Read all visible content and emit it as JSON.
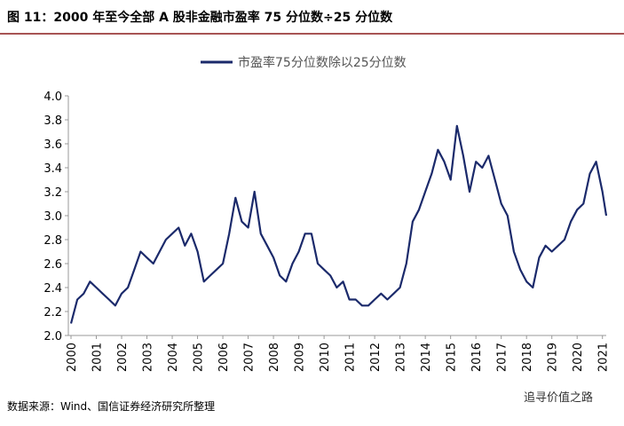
{
  "chart_data": {
    "type": "line",
    "title": "图 11：2000 年至今全部 A 股非金融市盈率 75 分位数÷25 分位数",
    "source": "数据来源：Wind、国信证券经济研究所整理",
    "watermark": "追寻价值之路",
    "legend": "top",
    "x": [
      2000.0,
      2000.25,
      2000.5,
      2000.75,
      2001.0,
      2001.25,
      2001.5,
      2001.75,
      2002.0,
      2002.25,
      2002.5,
      2002.75,
      2003.0,
      2003.25,
      2003.5,
      2003.75,
      2004.0,
      2004.25,
      2004.5,
      2004.75,
      2005.0,
      2005.25,
      2005.5,
      2005.75,
      2006.0,
      2006.25,
      2006.5,
      2006.75,
      2007.0,
      2007.25,
      2007.5,
      2007.75,
      2008.0,
      2008.25,
      2008.5,
      2008.75,
      2009.0,
      2009.25,
      2009.5,
      2009.75,
      2010.0,
      2010.25,
      2010.5,
      2010.75,
      2011.0,
      2011.25,
      2011.5,
      2011.75,
      2012.0,
      2012.25,
      2012.5,
      2012.75,
      2013.0,
      2013.25,
      2013.5,
      2013.75,
      2014.0,
      2014.25,
      2014.5,
      2014.75,
      2015.0,
      2015.25,
      2015.5,
      2015.75,
      2016.0,
      2016.25,
      2016.5,
      2016.75,
      2017.0,
      2017.25,
      2017.5,
      2017.75,
      2018.0,
      2018.25,
      2018.5,
      2018.75,
      2019.0,
      2019.25,
      2019.5,
      2019.75,
      2020.0,
      2020.25,
      2020.5,
      2020.75,
      2021.0,
      2021.15
    ],
    "series": [
      {
        "name": "市盈率75分位数除以25分位数",
        "color": "#1b2a6b",
        "values": [
          2.1,
          2.3,
          2.35,
          2.45,
          2.4,
          2.35,
          2.3,
          2.25,
          2.35,
          2.4,
          2.55,
          2.7,
          2.65,
          2.6,
          2.7,
          2.8,
          2.85,
          2.9,
          2.75,
          2.85,
          2.7,
          2.45,
          2.5,
          2.55,
          2.6,
          2.85,
          3.15,
          2.95,
          2.9,
          3.2,
          2.85,
          2.75,
          2.65,
          2.5,
          2.45,
          2.6,
          2.7,
          2.85,
          2.85,
          2.6,
          2.55,
          2.5,
          2.4,
          2.45,
          2.3,
          2.3,
          2.25,
          2.25,
          2.3,
          2.35,
          2.3,
          2.35,
          2.4,
          2.6,
          2.95,
          3.05,
          3.2,
          3.35,
          3.55,
          3.45,
          3.3,
          3.75,
          3.5,
          3.2,
          3.45,
          3.4,
          3.5,
          3.3,
          3.1,
          3.0,
          2.7,
          2.55,
          2.45,
          2.4,
          2.65,
          2.75,
          2.7,
          2.75,
          2.8,
          2.95,
          3.05,
          3.1,
          3.35,
          3.45,
          3.2,
          3.0
        ]
      }
    ],
    "xlim": [
      2000,
      2021.15
    ],
    "xticks": [
      2000,
      2001,
      2002,
      2003,
      2004,
      2005,
      2006,
      2007,
      2008,
      2009,
      2010,
      2011,
      2012,
      2013,
      2014,
      2015,
      2016,
      2017,
      2018,
      2019,
      2020,
      2021
    ],
    "ylim": [
      2.0,
      4.0
    ],
    "yticks": [
      {
        "value": 2.0,
        "label": "2.0"
      },
      {
        "value": 2.2,
        "label": "2.2"
      },
      {
        "value": 2.4,
        "label": "2.4"
      },
      {
        "value": 2.6,
        "label": "2.6"
      },
      {
        "value": 2.8,
        "label": "2.8"
      },
      {
        "value": 3.0,
        "label": "3.0"
      },
      {
        "value": 3.2,
        "label": "3.2"
      },
      {
        "value": 3.4,
        "label": "3.4"
      },
      {
        "value": 3.6,
        "label": "3.6"
      },
      {
        "value": 3.8,
        "label": "3.8"
      },
      {
        "value": 4.0,
        "label": "4.0"
      }
    ]
  }
}
